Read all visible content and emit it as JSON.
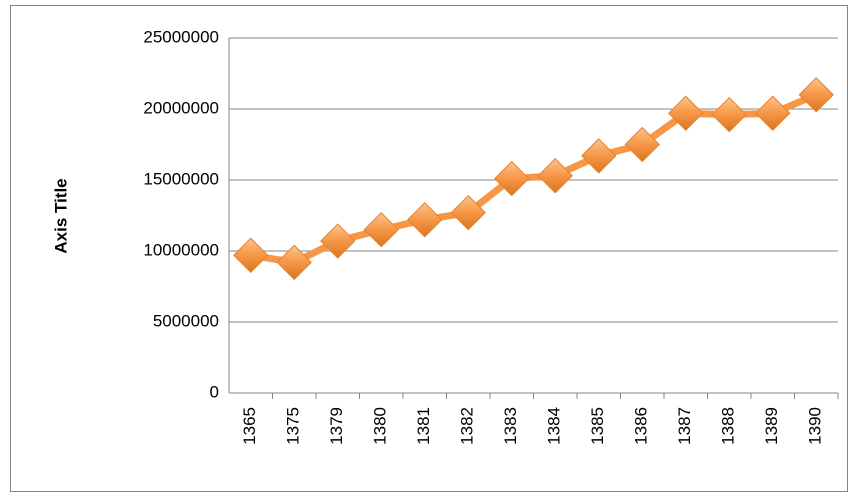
{
  "chart_data": {
    "type": "line",
    "y_axis_title": "Axis Title",
    "categories": [
      "1365",
      "1375",
      "1379",
      "1380",
      "1381",
      "1382",
      "1383",
      "1384",
      "1385",
      "1386",
      "1387",
      "1388",
      "1389",
      "1390"
    ],
    "values": [
      9700000,
      9200000,
      10700000,
      11500000,
      12200000,
      12700000,
      15100000,
      15300000,
      16700000,
      17500000,
      19700000,
      19600000,
      19700000,
      21000000
    ],
    "color": "#f79646",
    "ylim": [
      0,
      25000000
    ],
    "yticks": [
      0,
      5000000,
      10000000,
      15000000,
      20000000,
      25000000
    ],
    "grid": true
  }
}
